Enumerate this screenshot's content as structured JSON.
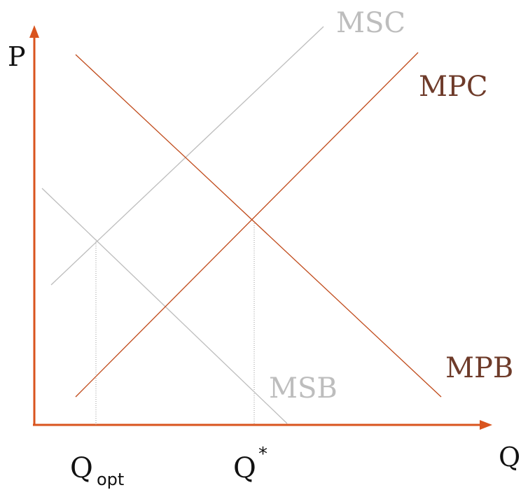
{
  "axes": {
    "y_label": "P",
    "x_label": "Q",
    "color": "#d9541e"
  },
  "curves": {
    "msc": {
      "label": "MSC",
      "color": "#bdbdbd"
    },
    "mpc": {
      "label": "MPC",
      "color": "#6e3b2a",
      "line_color": "#c04a1a"
    },
    "mpb": {
      "label": "MPB",
      "color": "#6e3b2a",
      "line_color": "#c04a1a"
    },
    "msb": {
      "label": "MSB",
      "color": "#bdbdbd"
    }
  },
  "quantities": {
    "q_opt": {
      "base": "Q",
      "sub": "opt"
    },
    "q_star": {
      "base": "Q",
      "sup": "*"
    }
  }
}
